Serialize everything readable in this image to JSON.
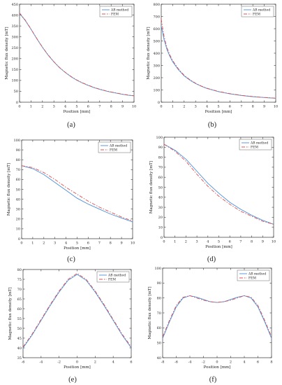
{
  "chart_data": [
    {
      "panel_label": "(a)",
      "type": "line",
      "xlabel": "Position [mm]",
      "ylabel": "Magnetic flux density [mT]",
      "xlim": [
        0,
        10
      ],
      "ylim": [
        0,
        450
      ],
      "xticks": [
        "0",
        "1",
        "2",
        "3",
        "4",
        "5",
        "6",
        "7",
        "8",
        "9",
        "10"
      ],
      "yticks": [
        "0",
        "50",
        "100",
        "150",
        "200",
        "250",
        "300",
        "350",
        "400",
        "450"
      ],
      "legend_position": "top-right",
      "series": [
        {
          "name": "AB method",
          "color": "#4a90d9",
          "dash": "solid",
          "x": [
            0,
            0.5,
            1,
            1.5,
            2,
            2.5,
            3,
            3.5,
            4,
            4.5,
            5,
            5.5,
            6,
            6.5,
            7,
            7.5,
            8,
            8.5,
            9,
            9.5,
            10
          ],
          "y": [
            408,
            375,
            335,
            292,
            252,
            216,
            185,
            158,
            136,
            117,
            101,
            88,
            77,
            67,
            59,
            52,
            46,
            41,
            36,
            32,
            29
          ]
        },
        {
          "name": "FEM",
          "color": "#e05050",
          "dash": "dashdot",
          "x": [
            0,
            0.5,
            1,
            1.5,
            2,
            2.5,
            3,
            3.5,
            4,
            4.5,
            5,
            5.5,
            6,
            6.5,
            7,
            7.5,
            8,
            8.5,
            9,
            9.5,
            10
          ],
          "y": [
            410,
            377,
            336,
            293,
            253,
            217,
            186,
            159,
            137,
            118,
            102,
            89,
            78,
            68,
            60,
            53,
            47,
            42,
            37,
            33,
            30
          ]
        }
      ]
    },
    {
      "panel_label": "(b)",
      "type": "line",
      "xlabel": "Position [mm]",
      "ylabel": "Magnetic flux density [mT]",
      "xlim": [
        0,
        10
      ],
      "ylim": [
        0,
        800
      ],
      "xticks": [
        "0",
        "1",
        "2",
        "3",
        "4",
        "5",
        "6",
        "7",
        "8",
        "9",
        "10"
      ],
      "yticks": [
        "0",
        "100",
        "200",
        "300",
        "400",
        "500",
        "600",
        "700",
        "800"
      ],
      "legend_position": "top-right",
      "series": [
        {
          "name": "AB method",
          "color": "#4a90d9",
          "dash": "solid",
          "x": [
            0,
            0.1,
            0.25,
            0.5,
            0.75,
            1,
            1.5,
            2,
            2.5,
            3,
            3.5,
            4,
            5,
            6,
            7,
            8,
            9,
            10
          ],
          "y": [
            620,
            580,
            510,
            430,
            375,
            330,
            265,
            215,
            180,
            152,
            130,
            112,
            86,
            68,
            55,
            45,
            38,
            32
          ]
        },
        {
          "name": "FEM",
          "color": "#e05050",
          "dash": "dashdot",
          "x": [
            0,
            0.1,
            0.25,
            0.5,
            0.75,
            1,
            1.5,
            2,
            2.5,
            3,
            3.5,
            4,
            5,
            6,
            7,
            8,
            9,
            10
          ],
          "y": [
            680,
            620,
            535,
            445,
            385,
            340,
            272,
            220,
            184,
            155,
            132,
            114,
            88,
            70,
            56,
            46,
            39,
            33
          ]
        }
      ]
    },
    {
      "panel_label": "(c)",
      "type": "line",
      "xlabel": "Position [mm]",
      "ylabel": "Magnetic flux density [mT]",
      "xlim": [
        0,
        10
      ],
      "ylim": [
        0,
        100
      ],
      "xticks": [
        "0",
        "1",
        "2",
        "3",
        "4",
        "5",
        "6",
        "7",
        "8",
        "9",
        "10"
      ],
      "yticks": [
        "0",
        "10",
        "20",
        "30",
        "40",
        "50",
        "60",
        "70",
        "80",
        "90",
        "100"
      ],
      "legend_position": "top-right",
      "series": [
        {
          "name": "AB method",
          "color": "#4a90d9",
          "dash": "solid",
          "x": [
            0,
            1,
            2,
            3,
            4,
            5,
            6,
            7,
            8,
            9,
            10
          ],
          "y": [
            74,
            71,
            65,
            57,
            49,
            41,
            35,
            30,
            25,
            21,
            17
          ]
        },
        {
          "name": "FEM",
          "color": "#e05050",
          "dash": "dashdot",
          "x": [
            0,
            1,
            2,
            3,
            4,
            5,
            6,
            7,
            8,
            9,
            10
          ],
          "y": [
            74,
            72,
            67,
            60,
            52,
            45,
            38,
            32,
            27,
            22,
            18
          ]
        }
      ]
    },
    {
      "panel_label": "(d)",
      "type": "line",
      "xlabel": "Position [mm]",
      "ylabel": "Magnetic flux density [mT]",
      "xlim": [
        0,
        10
      ],
      "ylim": [
        0,
        100
      ],
      "xticks": [
        "0",
        "1",
        "2",
        "3",
        "4",
        "5",
        "6",
        "7",
        "8",
        "9",
        "10"
      ],
      "yticks": [
        "0",
        "10",
        "20",
        "30",
        "40",
        "50",
        "60",
        "70",
        "80",
        "90",
        "100"
      ],
      "legend_position": "top-right",
      "series": [
        {
          "name": "AB method",
          "color": "#4a90d9",
          "dash": "solid",
          "x": [
            0,
            1,
            2,
            3,
            4,
            5,
            6,
            7,
            8,
            9,
            10
          ],
          "y": [
            93,
            87,
            78,
            66,
            54,
            44,
            35,
            28,
            22,
            17,
            13
          ]
        },
        {
          "name": "FEM",
          "color": "#e05050",
          "dash": "dashdot",
          "x": [
            0,
            1,
            2,
            3,
            4,
            5,
            6,
            7,
            8,
            9,
            10
          ],
          "y": [
            93,
            86,
            76,
            63,
            51,
            41,
            33,
            26,
            21,
            16,
            13
          ]
        }
      ]
    },
    {
      "panel_label": "(e)",
      "type": "line",
      "xlabel": "Position [mm]",
      "ylabel": "Magnetic flux density [mT]",
      "xlim": [
        -6,
        6
      ],
      "ylim": [
        35,
        80
      ],
      "xticks": [
        "-6",
        "-4",
        "-2",
        "0",
        "2",
        "4",
        "6"
      ],
      "yticks": [
        "35",
        "40",
        "45",
        "50",
        "55",
        "60",
        "65",
        "70",
        "75",
        "80"
      ],
      "legend_position": "top-right",
      "series": [
        {
          "name": "AB method",
          "color": "#4a90d9",
          "dash": "solid",
          "x": [
            -6,
            -5,
            -4,
            -3,
            -2,
            -1,
            0,
            1,
            2,
            3,
            4,
            5,
            6
          ],
          "y": [
            40,
            46.5,
            54,
            61.5,
            68.5,
            74.5,
            77.5,
            74.5,
            68.5,
            61.5,
            54,
            46.5,
            40
          ]
        },
        {
          "name": "FEM",
          "color": "#e05050",
          "dash": "dashdot",
          "x": [
            -6,
            -5,
            -4,
            -3,
            -2,
            -1,
            0,
            1,
            2,
            3,
            4,
            5,
            6
          ],
          "y": [
            40.5,
            47,
            54.5,
            62,
            69,
            75,
            78,
            75,
            69,
            62,
            54.5,
            47,
            40.5
          ]
        }
      ]
    },
    {
      "panel_label": "(f)",
      "type": "line",
      "xlabel": "Position [mm]",
      "ylabel": "Magnetic flux density [mT]",
      "xlim": [
        -8,
        8
      ],
      "ylim": [
        40,
        100
      ],
      "xticks": [
        "-8",
        "-6",
        "-4",
        "-2",
        "0",
        "2",
        "4",
        "6",
        "8"
      ],
      "yticks": [
        "40",
        "50",
        "60",
        "70",
        "80",
        "90",
        "100"
      ],
      "legend_position": "top-right",
      "series": [
        {
          "name": "AB method",
          "color": "#4a90d9",
          "dash": "solid",
          "x": [
            -8,
            -7,
            -6,
            -5,
            -4,
            -3,
            -2,
            -1,
            0,
            1,
            2,
            3,
            4,
            5,
            6,
            7,
            8
          ],
          "y": [
            53,
            64,
            74,
            80,
            81.5,
            80.5,
            79,
            77.5,
            77,
            77.5,
            79,
            80.5,
            81.5,
            80,
            74,
            64,
            53
          ]
        },
        {
          "name": "FEM",
          "color": "#e05050",
          "dash": "dashdot",
          "x": [
            -8,
            -7,
            -6,
            -5,
            -4,
            -3,
            -2,
            -1,
            0,
            1,
            2,
            3,
            4,
            5,
            6,
            7,
            8
          ],
          "y": [
            54,
            65,
            75,
            80.5,
            81.5,
            80,
            78.5,
            77.5,
            77,
            77.5,
            78.5,
            80,
            81.5,
            80.5,
            75,
            65,
            54
          ]
        }
      ]
    }
  ]
}
